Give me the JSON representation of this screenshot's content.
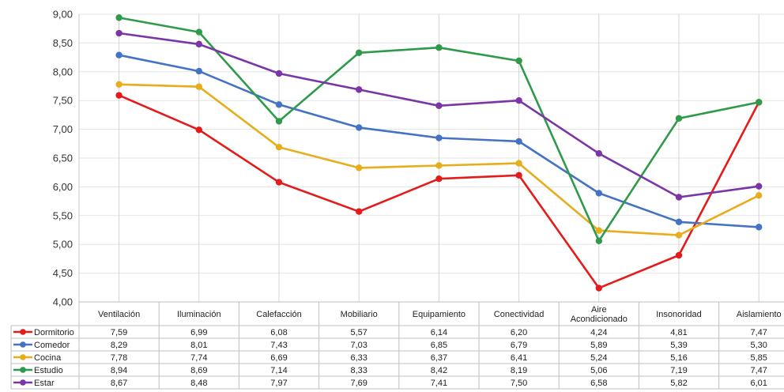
{
  "chart_data": {
    "type": "line",
    "title": "",
    "xlabel": "",
    "ylabel": "",
    "ylim": [
      4.0,
      9.0
    ],
    "ytick_step": 0.5,
    "y_tick_labels": [
      "4,00",
      "4,50",
      "5,00",
      "5,50",
      "6,00",
      "6,50",
      "7,00",
      "7,50",
      "8,00",
      "8,50",
      "9,00"
    ],
    "grid": "vertical category lines",
    "legend": "data table below chart",
    "categories": [
      "Ventilación",
      "Iluminación",
      "Calefacción",
      "Mobiliario",
      "Equipamiento",
      "Conectividad",
      "Aire\nAcondicionado",
      "Insonoridad",
      "Aislamiento"
    ],
    "series": [
      {
        "name": "Dormitorio",
        "color": "#e41b1b",
        "values": [
          7.59,
          6.99,
          6.08,
          5.57,
          6.14,
          6.2,
          4.24,
          4.81,
          7.47
        ],
        "labels": [
          "7,59",
          "6,99",
          "6,08",
          "5,57",
          "6,14",
          "6,20",
          "4,24",
          "4,81",
          "7,47"
        ]
      },
      {
        "name": "Comedor",
        "color": "#4472c4",
        "values": [
          8.29,
          8.01,
          7.43,
          7.03,
          6.85,
          6.79,
          5.89,
          5.39,
          5.3
        ],
        "labels": [
          "8,29",
          "8,01",
          "7,43",
          "7,03",
          "6,85",
          "6,79",
          "5,89",
          "5,39",
          "5,30"
        ]
      },
      {
        "name": "Cocina",
        "color": "#e6ad1c",
        "values": [
          7.78,
          7.74,
          6.69,
          6.33,
          6.37,
          6.41,
          5.24,
          5.16,
          5.85
        ],
        "labels": [
          "7,78",
          "7,74",
          "6,69",
          "6,33",
          "6,37",
          "6,41",
          "5,24",
          "5,16",
          "5,85"
        ]
      },
      {
        "name": "Estudio",
        "color": "#2e9a4a",
        "values": [
          8.94,
          8.69,
          7.14,
          8.33,
          8.42,
          8.19,
          5.06,
          7.19,
          7.47
        ],
        "labels": [
          "8,94",
          "8,69",
          "7,14",
          "8,33",
          "8,42",
          "8,19",
          "5,06",
          "7,19",
          "7,47"
        ]
      },
      {
        "name": "Estar",
        "color": "#7a35a6",
        "values": [
          8.67,
          8.48,
          7.97,
          7.69,
          7.41,
          7.5,
          6.58,
          5.82,
          6.01
        ],
        "labels": [
          "8,67",
          "8,48",
          "7,97",
          "7,69",
          "7,41",
          "7,50",
          "6,58",
          "5,82",
          "6,01"
        ]
      }
    ]
  }
}
